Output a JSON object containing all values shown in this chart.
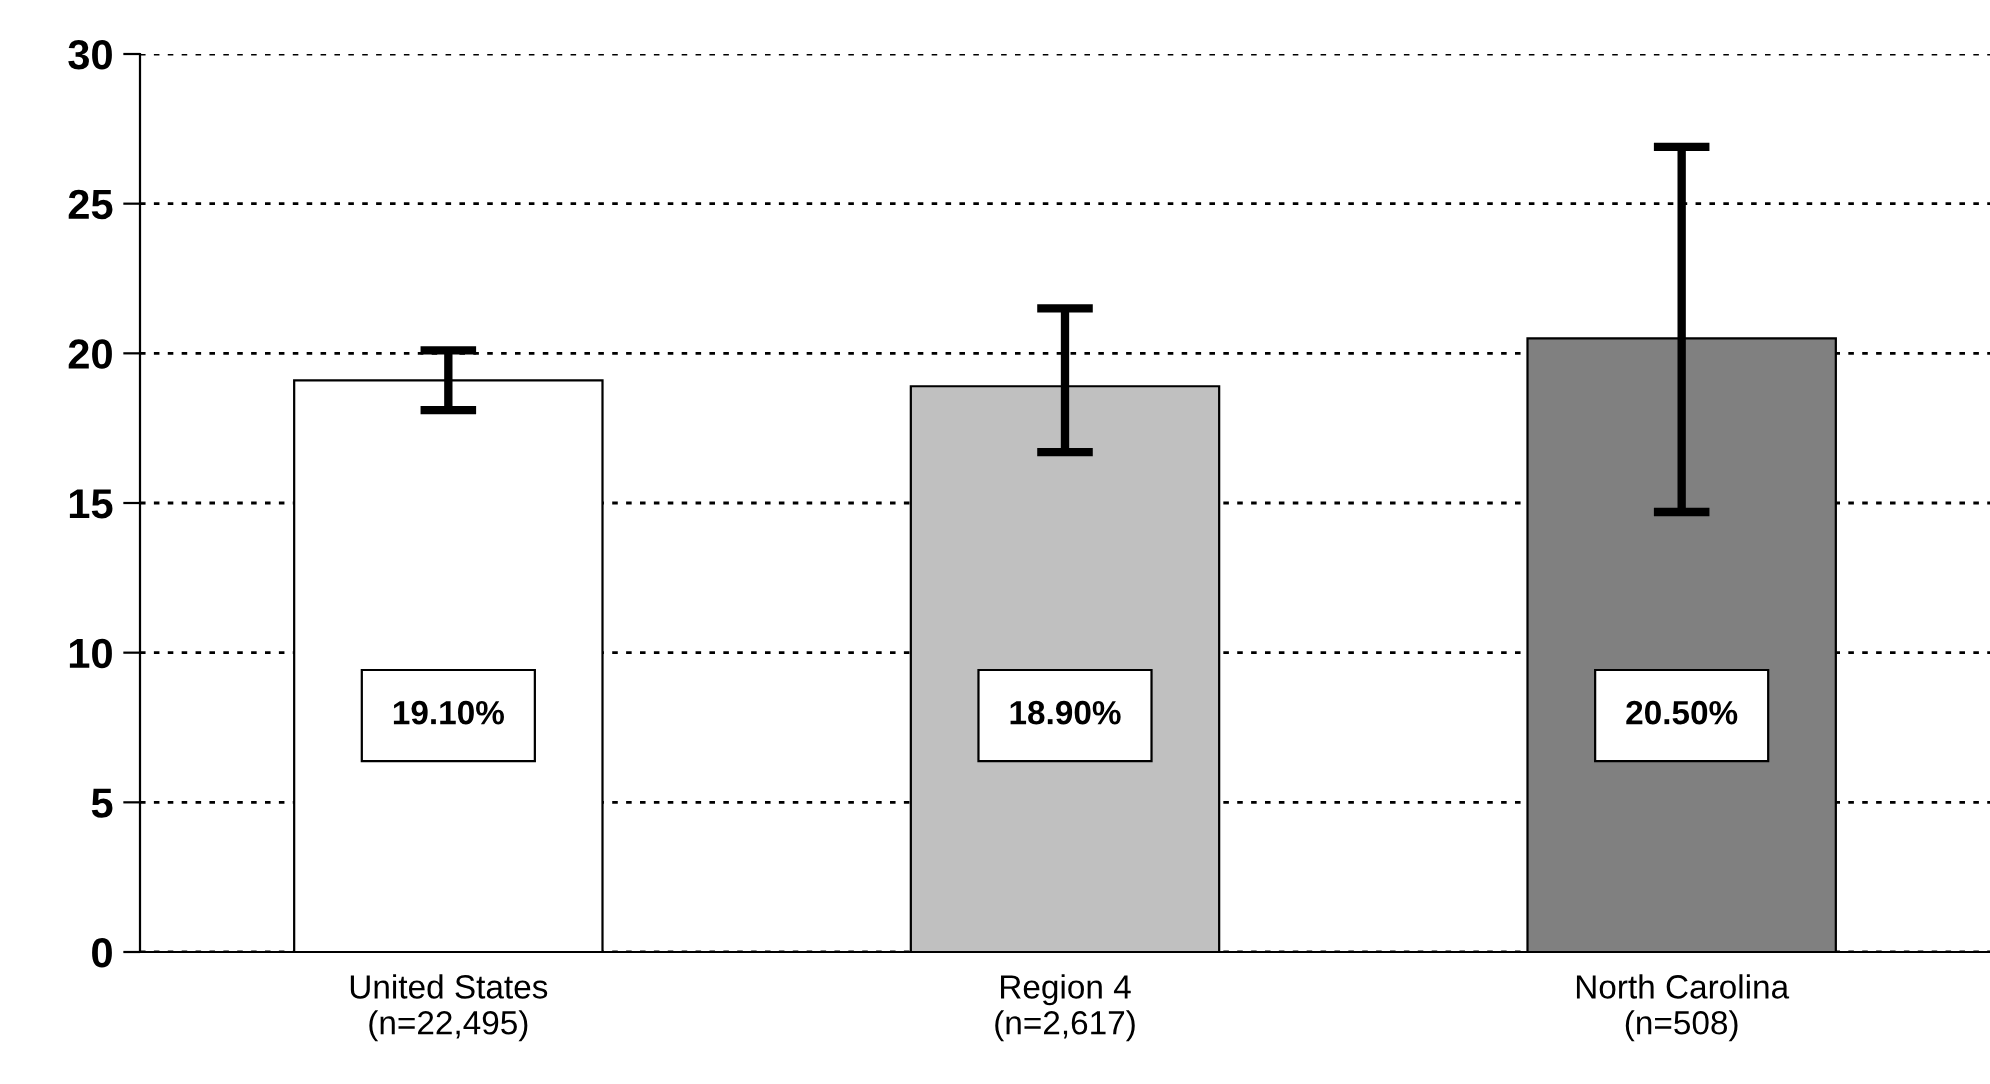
{
  "chart_data": {
    "type": "bar",
    "categories": [
      "United States\n(n=22,495)",
      "Region 4\n(n=2,617)",
      "North Carolina\n(n=508)"
    ],
    "values": [
      19.1,
      18.9,
      20.5
    ],
    "colors": [
      "#ffffff",
      "#c0c0c0",
      "#808080"
    ],
    "errors": [
      [
        18.1,
        20.1
      ],
      [
        16.7,
        21.5
      ],
      [
        14.7,
        26.9
      ]
    ],
    "value_labels": [
      "19.10%",
      "18.90%",
      "20.50%"
    ],
    "ylim": [
      0,
      30
    ],
    "yticks": [
      0,
      5,
      10,
      15,
      20,
      25,
      30
    ],
    "grid": "y",
    "line_style": "dotted"
  }
}
